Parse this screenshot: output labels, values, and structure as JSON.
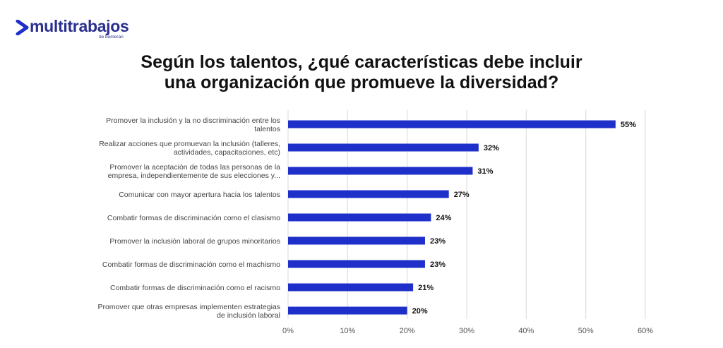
{
  "logo": {
    "name": "multitrabajos",
    "sub": "de bumeran"
  },
  "title_lines": [
    "Según los talentos, ¿qué características debe incluir",
    "una organización que promueve la diversidad?"
  ],
  "colors": {
    "bar": "#1f2fc9",
    "grid": "#d9d9d9",
    "brand": "#2a2f8f"
  },
  "chart_data": {
    "type": "bar",
    "orientation": "horizontal",
    "title": "Según los talentos, ¿qué características debe incluir una organización que promueve la diversidad?",
    "categories": [
      [
        "Promover la inclusión y la no discriminación entre los",
        "talentos"
      ],
      [
        "Realizar acciones que promuevan la inclusión (talleres,",
        "actividades, capacitaciones, etc)"
      ],
      [
        "Promover la aceptación de todas las personas de la",
        "empresa, independientemente de sus elecciones y..."
      ],
      [
        "Comunicar con mayor apertura hacia los talentos"
      ],
      [
        "Combatir formas de discriminación como el clasismo"
      ],
      [
        "Promover la inclusión laboral de grupos minoritarios"
      ],
      [
        "Combatir formas de discriminación como el machismo"
      ],
      [
        "Combatir formas de discriminación como el racismo"
      ],
      [
        "Promover que otras empresas implementen estrategias",
        "de inclusión laboral"
      ]
    ],
    "values": [
      55,
      32,
      31,
      27,
      24,
      23,
      23,
      21,
      20
    ],
    "value_labels": [
      "55%",
      "32%",
      "31%",
      "27%",
      "24%",
      "23%",
      "23%",
      "21%",
      "20%"
    ],
    "xlim": [
      0,
      60
    ],
    "xticks": [
      "0%",
      "10%",
      "20%",
      "30%",
      "40%",
      "50%",
      "60%"
    ],
    "grid": true,
    "legend": "none"
  }
}
